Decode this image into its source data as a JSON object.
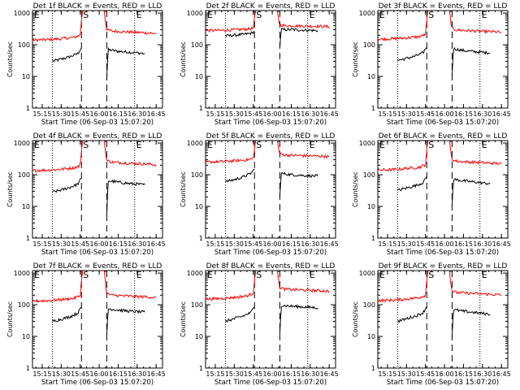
{
  "figure": {
    "panel_title_suffix": "BLACK = Events, RED = LLD",
    "xlabel": "Start Time (06-Sep-03 15:07:20)",
    "ylabel": "Counts/sec"
  },
  "axes": {
    "x_ticks": [
      "15:15",
      "15:30",
      "15:45",
      "16:00",
      "16:15",
      "16:30",
      "16:45"
    ],
    "y_ticks": [
      "1",
      "10",
      "100",
      "1000"
    ],
    "ylim": [
      1,
      1200
    ],
    "y_scale": "log",
    "xlim": [
      "15:07:20",
      "16:50:00"
    ]
  },
  "markers": {
    "E": "E",
    "S": "S"
  },
  "colors": {
    "events": "#000000",
    "lld": "#ff0000"
  },
  "chart_data": [
    {
      "type": "line",
      "title": "Det 1f BLACK = Events, RED = LLD",
      "detector": "Det 1f",
      "dashed_lines": [
        "15:46",
        "16:06"
      ],
      "dotted_lines": [
        "15:23",
        "16:28"
      ],
      "series": [
        {
          "name": "Events",
          "segments": [
            {
              "x": [
                "15:23",
                "15:30",
                "15:37",
                "15:43",
                "15:46"
              ],
              "y": [
                30,
                35,
                42,
                52,
                80
              ]
            },
            {
              "x": [
                "16:06",
                "16:07",
                "16:15",
                "16:25",
                "16:36"
              ],
              "y": [
                8,
                70,
                62,
                58,
                52
              ]
            }
          ]
        },
        {
          "name": "LLD",
          "segments": [
            {
              "x": [
                "15:07:20",
                "15:20",
                "15:30",
                "15:40",
                "15:45",
                "15:46",
                "15:47"
              ],
              "y": [
                140,
                145,
                155,
                170,
                200,
                600,
                1200
              ]
            },
            {
              "x": [
                "16:04",
                "16:05",
                "16:06",
                "16:10",
                "16:25",
                "16:40",
                "16:45"
              ],
              "y": [
                1200,
                500,
                300,
                270,
                250,
                235,
                225
              ]
            }
          ]
        }
      ]
    },
    {
      "type": "line",
      "title": "Det 2f BLACK = Events, RED = LLD",
      "detector": "Det 2f",
      "dashed_lines": [
        "15:46",
        "16:06"
      ],
      "dotted_lines": [
        "15:23",
        "16:28"
      ],
      "series": [
        {
          "name": "Events",
          "segments": [
            {
              "x": [
                "15:23",
                "15:30",
                "15:37",
                "15:43",
                "15:46"
              ],
              "y": [
                190,
                200,
                210,
                230,
                260
              ]
            },
            {
              "x": [
                "16:06",
                "16:07",
                "16:15",
                "16:25",
                "16:36"
              ],
              "y": [
                80,
                300,
                300,
                290,
                280
              ]
            }
          ]
        },
        {
          "name": "LLD",
          "segments": [
            {
              "x": [
                "15:07:20",
                "15:20",
                "15:30",
                "15:40",
                "15:45",
                "15:46",
                "15:47"
              ],
              "y": [
                280,
                285,
                295,
                310,
                330,
                700,
                1200
              ]
            },
            {
              "x": [
                "16:04",
                "16:05",
                "16:06",
                "16:10",
                "16:25",
                "16:40",
                "16:45"
              ],
              "y": [
                1200,
                600,
                420,
                400,
                390,
                380,
                370
              ]
            }
          ]
        }
      ]
    },
    {
      "type": "line",
      "title": "Det 3f BLACK = Events, RED = LLD",
      "detector": "Det 3f",
      "dashed_lines": [
        "15:46",
        "16:06"
      ],
      "dotted_lines": [
        "15:23",
        "16:28"
      ],
      "series": [
        {
          "name": "Events",
          "segments": [
            {
              "x": [
                "15:23",
                "15:30",
                "15:37",
                "15:43",
                "15:46"
              ],
              "y": [
                32,
                37,
                44,
                55,
                85
              ]
            },
            {
              "x": [
                "16:06",
                "16:07",
                "16:15",
                "16:25",
                "16:36"
              ],
              "y": [
                10,
                75,
                65,
                60,
                55
              ]
            }
          ]
        },
        {
          "name": "LLD",
          "segments": [
            {
              "x": [
                "15:07:20",
                "15:20",
                "15:30",
                "15:40",
                "15:45",
                "15:46",
                "15:47"
              ],
              "y": [
                150,
                155,
                165,
                180,
                210,
                600,
                1200
              ]
            },
            {
              "x": [
                "16:04",
                "16:05",
                "16:06",
                "16:10",
                "16:25",
                "16:40",
                "16:45"
              ],
              "y": [
                1200,
                500,
                320,
                290,
                270,
                255,
                245
              ]
            }
          ]
        }
      ]
    },
    {
      "type": "line",
      "title": "Det 4f BLACK = Events, RED = LLD",
      "detector": "Det 4f",
      "dashed_lines": [
        "15:46",
        "16:06"
      ],
      "dotted_lines": [
        "15:23",
        "16:28"
      ],
      "series": [
        {
          "name": "Events",
          "segments": [
            {
              "x": [
                "15:23",
                "15:30",
                "15:37",
                "15:43",
                "15:46"
              ],
              "y": [
                28,
                33,
                40,
                50,
                78
              ]
            },
            {
              "x": [
                "16:06",
                "16:07",
                "16:15",
                "16:25",
                "16:36"
              ],
              "y": [
                5,
                65,
                58,
                52,
                48
              ]
            }
          ]
        },
        {
          "name": "LLD",
          "segments": [
            {
              "x": [
                "15:07:20",
                "15:20",
                "15:30",
                "15:40",
                "15:45",
                "15:46",
                "15:47"
              ],
              "y": [
                135,
                140,
                150,
                165,
                195,
                600,
                1200
              ]
            },
            {
              "x": [
                "16:04",
                "16:05",
                "16:06",
                "16:10",
                "16:25",
                "16:40",
                "16:45"
              ],
              "y": [
                1200,
                500,
                280,
                250,
                230,
                215,
                205
              ]
            }
          ]
        }
      ]
    },
    {
      "type": "line",
      "title": "Det 5f BLACK = Events, RED = LLD",
      "detector": "Det 5f",
      "dashed_lines": [
        "15:46",
        "16:06"
      ],
      "dotted_lines": [
        "15:23",
        "16:28"
      ],
      "series": [
        {
          "name": "Events",
          "segments": [
            {
              "x": [
                "15:23",
                "15:30",
                "15:37",
                "15:43",
                "15:46"
              ],
              "y": [
                60,
                70,
                85,
                110,
                150
              ]
            },
            {
              "x": [
                "16:06",
                "16:07",
                "16:15",
                "16:25",
                "16:36"
              ],
              "y": [
                20,
                110,
                100,
                95,
                90
              ]
            }
          ]
        },
        {
          "name": "LLD",
          "segments": [
            {
              "x": [
                "15:07:20",
                "15:20",
                "15:30",
                "15:40",
                "15:45",
                "15:46",
                "15:47"
              ],
              "y": [
                250,
                260,
                275,
                295,
                320,
                700,
                1200
              ]
            },
            {
              "x": [
                "16:04",
                "16:05",
                "16:06",
                "16:10",
                "16:25",
                "16:40",
                "16:45"
              ],
              "y": [
                1200,
                650,
                450,
                420,
                400,
                385,
                370
              ]
            }
          ]
        }
      ]
    },
    {
      "type": "line",
      "title": "Det 6f BLACK = Events, RED = LLD",
      "detector": "Det 6f",
      "dashed_lines": [
        "15:46",
        "16:06"
      ],
      "dotted_lines": [
        "15:23",
        "16:28"
      ],
      "series": [
        {
          "name": "Events",
          "segments": [
            {
              "x": [
                "15:23",
                "15:30",
                "15:37",
                "15:43",
                "15:46"
              ],
              "y": [
                32,
                38,
                45,
                56,
                88
              ]
            },
            {
              "x": [
                "16:06",
                "16:07",
                "16:15",
                "16:25",
                "16:36"
              ],
              "y": [
                10,
                72,
                64,
                58,
                52
              ]
            }
          ]
        },
        {
          "name": "LLD",
          "segments": [
            {
              "x": [
                "15:07:20",
                "15:20",
                "15:30",
                "15:40",
                "15:45",
                "15:46",
                "15:47"
              ],
              "y": [
                140,
                145,
                158,
                172,
                205,
                600,
                1200
              ]
            },
            {
              "x": [
                "16:04",
                "16:05",
                "16:06",
                "16:10",
                "16:25",
                "16:40",
                "16:45"
              ],
              "y": [
                1200,
                500,
                300,
                265,
                245,
                230,
                220
              ]
            }
          ]
        }
      ]
    },
    {
      "type": "line",
      "title": "Det 7f BLACK = Events, RED = LLD",
      "detector": "Det 7f",
      "dashed_lines": [
        "15:46",
        "16:06"
      ],
      "dotted_lines": [
        "15:23",
        "16:28"
      ],
      "series": [
        {
          "name": "Events",
          "segments": [
            {
              "x": [
                "15:23",
                "15:30",
                "15:37",
                "15:43",
                "15:46"
              ],
              "y": [
                30,
                35,
                42,
                54,
                85
              ]
            },
            {
              "x": [
                "16:06",
                "16:07",
                "16:15",
                "16:25",
                "16:36"
              ],
              "y": [
                10,
                75,
                68,
                62,
                58
              ]
            }
          ]
        },
        {
          "name": "LLD",
          "segments": [
            {
              "x": [
                "15:07:20",
                "15:20",
                "15:30",
                "15:40",
                "15:45",
                "15:46",
                "15:47"
              ],
              "y": [
                130,
                135,
                145,
                160,
                190,
                600,
                1200
              ]
            },
            {
              "x": [
                "16:04",
                "16:05",
                "16:06",
                "16:10",
                "16:25",
                "16:40",
                "16:45"
              ],
              "y": [
                1200,
                450,
                220,
                200,
                185,
                175,
                165
              ]
            }
          ]
        }
      ]
    },
    {
      "type": "line",
      "title": "Det 8f BLACK = Events, RED = LLD",
      "detector": "Det 8f",
      "dashed_lines": [
        "15:46",
        "16:06"
      ],
      "dotted_lines": [
        "15:23",
        "16:28"
      ],
      "series": [
        {
          "name": "Events",
          "segments": [
            {
              "x": [
                "15:23",
                "15:30",
                "15:37",
                "15:43",
                "15:46"
              ],
              "y": [
                30,
                36,
                44,
                56,
                90
              ]
            },
            {
              "x": [
                "16:06",
                "16:07",
                "16:15",
                "16:25",
                "16:36"
              ],
              "y": [
                12,
                95,
                90,
                85,
                80
              ]
            }
          ]
        },
        {
          "name": "LLD",
          "segments": [
            {
              "x": [
                "15:07:20",
                "15:20",
                "15:30",
                "15:40",
                "15:45",
                "15:46",
                "15:47"
              ],
              "y": [
                150,
                158,
                170,
                190,
                230,
                650,
                1200
              ]
            },
            {
              "x": [
                "16:04",
                "16:05",
                "16:06",
                "16:10",
                "16:25",
                "16:40",
                "16:45"
              ],
              "y": [
                1200,
                550,
                340,
                310,
                290,
                275,
                265
              ]
            }
          ]
        }
      ]
    },
    {
      "type": "line",
      "title": "Det 9f BLACK = Events, RED = LLD",
      "detector": "Det 9f",
      "dashed_lines": [
        "15:46",
        "16:06"
      ],
      "dotted_lines": [
        "15:23",
        "16:28"
      ],
      "series": [
        {
          "name": "Events",
          "segments": [
            {
              "x": [
                "15:23",
                "15:30",
                "15:37",
                "15:43",
                "15:46"
              ],
              "y": [
                30,
                36,
                44,
                56,
                88
              ]
            },
            {
              "x": [
                "16:06",
                "16:07",
                "16:15",
                "16:25",
                "16:36"
              ],
              "y": [
                10,
                70,
                62,
                56,
                50
              ]
            }
          ]
        },
        {
          "name": "LLD",
          "segments": [
            {
              "x": [
                "15:07:20",
                "15:20",
                "15:30",
                "15:40",
                "15:45",
                "15:46",
                "15:47"
              ],
              "y": [
                135,
                140,
                152,
                168,
                200,
                600,
                1200
              ]
            },
            {
              "x": [
                "16:04",
                "16:05",
                "16:06",
                "16:10",
                "16:25",
                "16:40",
                "16:45"
              ],
              "y": [
                1200,
                480,
                270,
                240,
                225,
                210,
                200
              ]
            }
          ]
        }
      ]
    }
  ]
}
